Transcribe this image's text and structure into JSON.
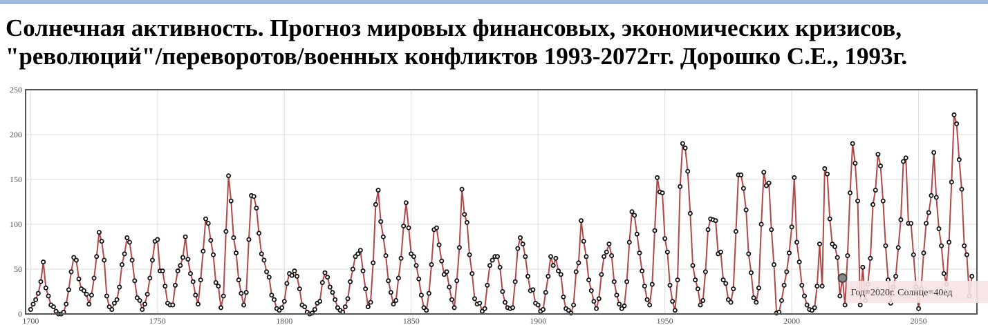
{
  "chart_data": {
    "type": "line",
    "title": [
      "Солнечная активность. Прогноз мировых финансовых, экономических кризисов,",
      "\"революций\"/переворотов/военных конфликтов 1993-2072гг. Дорошко С.Е., 1993г."
    ],
    "x": [
      1700,
      1701,
      1702,
      1703,
      1704,
      1705,
      1706,
      1707,
      1708,
      1709,
      1710,
      1711,
      1712,
      1713,
      1714,
      1715,
      1716,
      1717,
      1718,
      1719,
      1720,
      1721,
      1722,
      1723,
      1724,
      1725,
      1726,
      1727,
      1728,
      1729,
      1730,
      1731,
      1732,
      1733,
      1734,
      1735,
      1736,
      1737,
      1738,
      1739,
      1740,
      1741,
      1742,
      1743,
      1744,
      1745,
      1746,
      1747,
      1748,
      1749,
      1750,
      1751,
      1752,
      1753,
      1754,
      1755,
      1756,
      1757,
      1758,
      1759,
      1760,
      1761,
      1762,
      1763,
      1764,
      1765,
      1766,
      1767,
      1768,
      1769,
      1770,
      1771,
      1772,
      1773,
      1774,
      1775,
      1776,
      1777,
      1778,
      1779,
      1780,
      1781,
      1782,
      1783,
      1784,
      1785,
      1786,
      1787,
      1788,
      1789,
      1790,
      1791,
      1792,
      1793,
      1794,
      1795,
      1796,
      1797,
      1798,
      1799,
      1800,
      1801,
      1802,
      1803,
      1804,
      1805,
      1806,
      1807,
      1808,
      1809,
      1810,
      1811,
      1812,
      1813,
      1814,
      1815,
      1816,
      1817,
      1818,
      1819,
      1820,
      1821,
      1822,
      1823,
      1824,
      1825,
      1826,
      1827,
      1828,
      1829,
      1830,
      1831,
      1832,
      1833,
      1834,
      1835,
      1836,
      1837,
      1838,
      1839,
      1840,
      1841,
      1842,
      1843,
      1844,
      1845,
      1846,
      1847,
      1848,
      1849,
      1850,
      1851,
      1852,
      1853,
      1854,
      1855,
      1856,
      1857,
      1858,
      1859,
      1860,
      1861,
      1862,
      1863,
      1864,
      1865,
      1866,
      1867,
      1868,
      1869,
      1870,
      1871,
      1872,
      1873,
      1874,
      1875,
      1876,
      1877,
      1878,
      1879,
      1880,
      1881,
      1882,
      1883,
      1884,
      1885,
      1886,
      1887,
      1888,
      1889,
      1890,
      1891,
      1892,
      1893,
      1894,
      1895,
      1896,
      1897,
      1898,
      1899,
      1900,
      1901,
      1902,
      1903,
      1904,
      1905,
      1906,
      1907,
      1908,
      1909,
      1910,
      1911,
      1912,
      1913,
      1914,
      1915,
      1916,
      1917,
      1918,
      1919,
      1920,
      1921,
      1922,
      1923,
      1924,
      1925,
      1926,
      1927,
      1928,
      1929,
      1930,
      1931,
      1932,
      1933,
      1934,
      1935,
      1936,
      1937,
      1938,
      1939,
      1940,
      1941,
      1942,
      1943,
      1944,
      1945,
      1946,
      1947,
      1948,
      1949,
      1950,
      1951,
      1952,
      1953,
      1954,
      1955,
      1956,
      1957,
      1958,
      1959,
      1960,
      1961,
      1962,
      1963,
      1964,
      1965,
      1966,
      1967,
      1968,
      1969,
      1970,
      1971,
      1972,
      1973,
      1974,
      1975,
      1976,
      1977,
      1978,
      1979,
      1980,
      1981,
      1982,
      1983,
      1984,
      1985,
      1986,
      1987,
      1988,
      1989,
      1990,
      1991,
      1992,
      1993,
      1994,
      1995,
      1996,
      1997,
      1998,
      1999,
      2000,
      2001,
      2002,
      2003,
      2004,
      2005,
      2006,
      2007,
      2008,
      2009,
      2010,
      2011,
      2012,
      2013,
      2014,
      2015,
      2016,
      2017,
      2018,
      2019,
      2020,
      2021,
      2022,
      2023,
      2024,
      2025,
      2026,
      2027,
      2028,
      2029,
      2030,
      2031,
      2032,
      2033,
      2034,
      2035,
      2036,
      2037,
      2038,
      2039,
      2040,
      2041,
      2042,
      2043,
      2044,
      2045,
      2046,
      2047,
      2048,
      2049,
      2050,
      2051,
      2052,
      2053,
      2054,
      2055,
      2056,
      2057,
      2058,
      2059,
      2060,
      2061,
      2062,
      2063,
      2064,
      2065,
      2066,
      2067,
      2068,
      2069,
      2070,
      2071
    ],
    "values": [
      5,
      11,
      16,
      23,
      36,
      58,
      29,
      20,
      10,
      8,
      3,
      0,
      0,
      2,
      11,
      27,
      47,
      63,
      60,
      39,
      28,
      26,
      22,
      11,
      21,
      40,
      64,
      91,
      81,
      60,
      20,
      8,
      5,
      12,
      16,
      30,
      55,
      67,
      85,
      80,
      60,
      37,
      18,
      15,
      5,
      11,
      22,
      40,
      60,
      81,
      83,
      48,
      48,
      31,
      12,
      10,
      10,
      32,
      48,
      54,
      63,
      86,
      61,
      45,
      36,
      21,
      11,
      38,
      70,
      106,
      101,
      82,
      66,
      35,
      31,
      7,
      20,
      92,
      154,
      126,
      85,
      68,
      38,
      23,
      10,
      24,
      83,
      132,
      131,
      118,
      90,
      67,
      60,
      47,
      41,
      21,
      16,
      6,
      4,
      7,
      14,
      34,
      45,
      43,
      48,
      42,
      28,
      10,
      8,
      2,
      0,
      1,
      5,
      12,
      14,
      35,
      46,
      41,
      30,
      24,
      16,
      7,
      4,
      2,
      8,
      17,
      36,
      50,
      64,
      67,
      71,
      48,
      28,
      8,
      13,
      57,
      122,
      138,
      103,
      86,
      65,
      37,
      24,
      11,
      15,
      40,
      62,
      98,
      124,
      96,
      67,
      64,
      54,
      39,
      21,
      7,
      4,
      23,
      55,
      94,
      96,
      77,
      59,
      44,
      47,
      30,
      16,
      7,
      37,
      74,
      139,
      111,
      102,
      66,
      45,
      17,
      11,
      12,
      3,
      6,
      32,
      54,
      60,
      64,
      64,
      52,
      25,
      13,
      7,
      6,
      7,
      36,
      73,
      85,
      78,
      64,
      42,
      26,
      27,
      12,
      10,
      3,
      5,
      24,
      42,
      64,
      54,
      62,
      48,
      44,
      19,
      6,
      4,
      1,
      10,
      47,
      57,
      104,
      81,
      64,
      38,
      26,
      14,
      6,
      17,
      44,
      64,
      69,
      78,
      65,
      36,
      21,
      11,
      6,
      9,
      36,
      80,
      114,
      110,
      89,
      68,
      48,
      31,
      16,
      10,
      33,
      93,
      152,
      136,
      135,
      84,
      69,
      32,
      14,
      4,
      38,
      142,
      190,
      185,
      159,
      112,
      54,
      38,
      28,
      10,
      15,
      47,
      94,
      106,
      105,
      104,
      67,
      69,
      38,
      34,
      16,
      13,
      28,
      92,
      155,
      155,
      140,
      116,
      67,
      46,
      18,
      13,
      29,
      100,
      158,
      143,
      146,
      94,
      55,
      1,
      2,
      15,
      32,
      47,
      68,
      97,
      152,
      80,
      58,
      32,
      20,
      10,
      5,
      4,
      7,
      31,
      78,
      31,
      162,
      156,
      106,
      78,
      75,
      63,
      20,
      40,
      10,
      65,
      135,
      190,
      168,
      126,
      10,
      52,
      15,
      33,
      62,
      122,
      138,
      178,
      165,
      126,
      76,
      38,
      12,
      30,
      42,
      74,
      105,
      170,
      174,
      101,
      101,
      66,
      30,
      6,
      28,
      68,
      101,
      113,
      132,
      180,
      130,
      95,
      76,
      45,
      33,
      80,
      147,
      222,
      212,
      172,
      139,
      76,
      66,
      20,
      42
    ],
    "line_color": "#b04848",
    "marker_color": "#111111",
    "xlim": [
      1698,
      2073
    ],
    "xticks": [
      1700,
      1750,
      1800,
      1850,
      1900,
      1950,
      2000,
      2050
    ],
    "ylim": [
      0,
      250
    ],
    "yticks": [
      0,
      50,
      100,
      150,
      200,
      250
    ],
    "grid": true,
    "highlight": {
      "x": 2020,
      "y": 40,
      "label": "Год=2020г. Солнце=40ед"
    }
  }
}
